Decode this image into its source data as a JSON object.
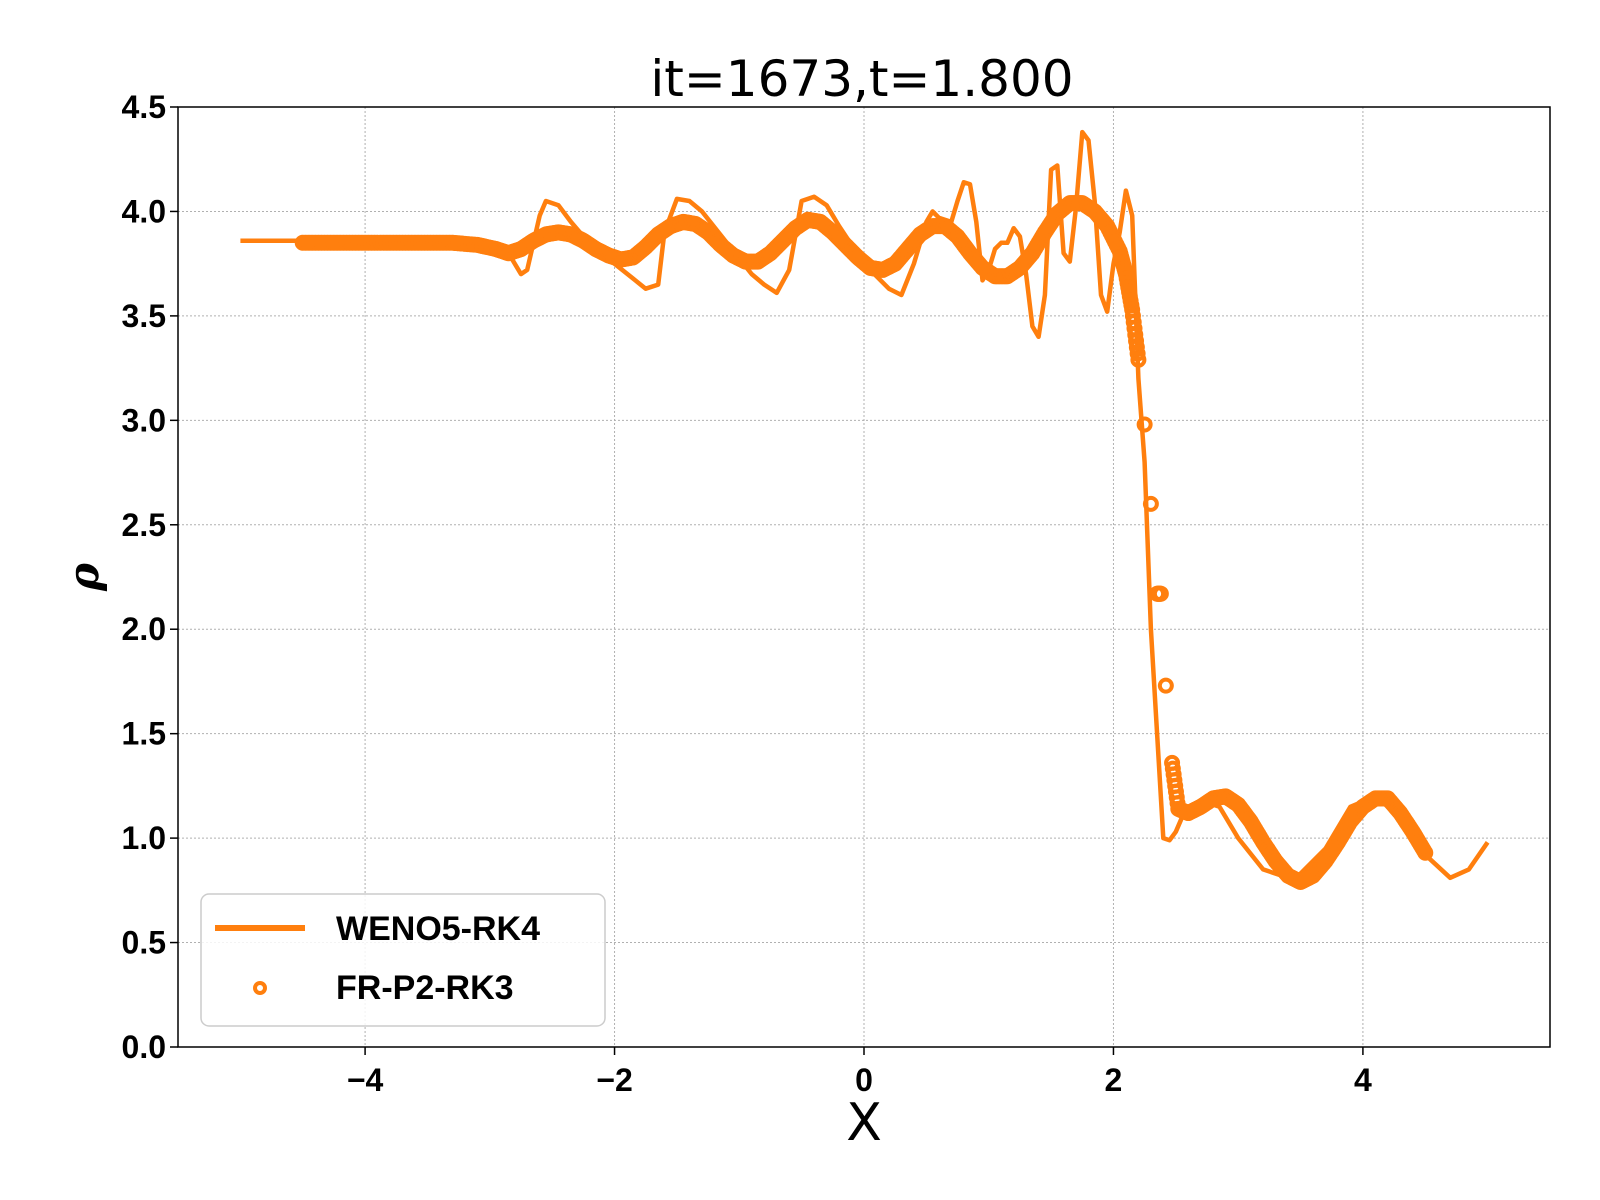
{
  "chart_data": {
    "type": "line",
    "title": "it=1673,t=1.800",
    "xlabel": "X",
    "ylabel": "ρ",
    "xlim": [
      -5.5,
      5.5
    ],
    "ylim": [
      0.0,
      4.5
    ],
    "xticks": [
      -4,
      -2,
      0,
      2,
      4
    ],
    "xtick_labels": [
      "−4",
      "−2",
      "0",
      "2",
      "4"
    ],
    "yticks": [
      0.0,
      0.5,
      1.0,
      1.5,
      2.0,
      2.5,
      3.0,
      3.5,
      4.0,
      4.5
    ],
    "ytick_labels": [
      "0.0",
      "0.5",
      "1.0",
      "1.5",
      "2.0",
      "2.5",
      "3.0",
      "3.5",
      "4.0",
      "4.5"
    ],
    "grid": true,
    "legend_position": "lower-left",
    "color": "#ff7f0e",
    "series": [
      {
        "name": "WENO5-RK4",
        "style": "line",
        "x": [
          -5.0,
          -4.0,
          -3.5,
          -3.0,
          -2.85,
          -2.75,
          -2.7,
          -2.6,
          -2.55,
          -2.45,
          -2.35,
          -2.25,
          -2.0,
          -1.75,
          -1.65,
          -1.6,
          -1.5,
          -1.4,
          -1.3,
          -1.1,
          -0.9,
          -0.8,
          -0.7,
          -0.6,
          -0.5,
          -0.4,
          -0.3,
          -0.2,
          0.0,
          0.2,
          0.3,
          0.4,
          0.5,
          0.55,
          0.6,
          0.7,
          0.75,
          0.8,
          0.85,
          0.9,
          0.95,
          1.0,
          1.05,
          1.1,
          1.15,
          1.2,
          1.25,
          1.3,
          1.35,
          1.4,
          1.45,
          1.5,
          1.55,
          1.6,
          1.65,
          1.7,
          1.75,
          1.8,
          1.85,
          1.9,
          1.95,
          2.0,
          2.05,
          2.1,
          2.15,
          2.2,
          2.25,
          2.3,
          2.35,
          2.4,
          2.45,
          2.5,
          2.55,
          2.6,
          2.7,
          2.85,
          3.0,
          3.2,
          3.45,
          3.7,
          3.9,
          4.1,
          4.3,
          4.5,
          4.7,
          4.85,
          5.0
        ],
        "y": [
          3.86,
          3.86,
          3.86,
          3.85,
          3.8,
          3.7,
          3.72,
          3.98,
          4.05,
          4.03,
          3.95,
          3.88,
          3.75,
          3.63,
          3.65,
          3.9,
          4.06,
          4.05,
          4.0,
          3.85,
          3.7,
          3.65,
          3.61,
          3.72,
          4.05,
          4.07,
          4.03,
          3.93,
          3.75,
          3.63,
          3.6,
          3.75,
          3.95,
          4.0,
          3.97,
          3.95,
          4.05,
          4.14,
          4.13,
          3.95,
          3.67,
          3.72,
          3.82,
          3.85,
          3.85,
          3.92,
          3.88,
          3.7,
          3.45,
          3.4,
          3.6,
          4.2,
          4.22,
          3.8,
          3.76,
          4.02,
          4.38,
          4.34,
          4.05,
          3.6,
          3.52,
          3.75,
          3.9,
          4.1,
          3.98,
          3.2,
          2.8,
          2.0,
          1.5,
          1.0,
          0.99,
          1.03,
          1.1,
          1.15,
          1.18,
          1.15,
          1.0,
          0.85,
          0.8,
          0.95,
          1.15,
          1.2,
          1.1,
          0.92,
          0.81,
          0.85,
          0.98
        ]
      },
      {
        "name": "FR-P2-RK3",
        "style": "markers",
        "marker": "open-circle",
        "x": [
          -4.5,
          -4.3,
          -4.1,
          -3.9,
          -3.7,
          -3.5,
          -3.3,
          -3.1,
          -2.95,
          -2.85,
          -2.75,
          -2.65,
          -2.55,
          -2.45,
          -2.35,
          -2.25,
          -2.15,
          -2.05,
          -1.95,
          -1.85,
          -1.75,
          -1.65,
          -1.55,
          -1.45,
          -1.35,
          -1.25,
          -1.15,
          -1.05,
          -0.95,
          -0.85,
          -0.75,
          -0.65,
          -0.55,
          -0.45,
          -0.35,
          -0.25,
          -0.15,
          -0.05,
          0.05,
          0.15,
          0.25,
          0.35,
          0.45,
          0.55,
          0.65,
          0.75,
          0.85,
          0.95,
          1.05,
          1.15,
          1.25,
          1.35,
          1.45,
          1.55,
          1.65,
          1.75,
          1.85,
          1.95,
          2.05,
          2.1,
          2.15,
          2.2,
          2.25,
          2.3,
          2.35,
          2.38,
          2.42,
          2.47,
          2.52,
          2.6,
          2.7,
          2.8,
          2.9,
          3.0,
          3.1,
          3.2,
          3.3,
          3.4,
          3.5,
          3.6,
          3.7,
          3.8,
          3.9,
          4.0,
          4.1,
          4.2,
          4.3,
          4.4,
          4.5
        ],
        "y": [
          3.85,
          3.85,
          3.85,
          3.85,
          3.85,
          3.85,
          3.85,
          3.84,
          3.82,
          3.8,
          3.82,
          3.86,
          3.89,
          3.9,
          3.89,
          3.86,
          3.82,
          3.79,
          3.77,
          3.78,
          3.83,
          3.89,
          3.93,
          3.95,
          3.94,
          3.9,
          3.84,
          3.79,
          3.76,
          3.76,
          3.8,
          3.86,
          3.92,
          3.96,
          3.95,
          3.9,
          3.84,
          3.78,
          3.73,
          3.72,
          3.75,
          3.82,
          3.89,
          3.93,
          3.93,
          3.88,
          3.8,
          3.73,
          3.69,
          3.69,
          3.73,
          3.8,
          3.9,
          3.99,
          4.04,
          4.04,
          4.0,
          3.93,
          3.81,
          3.7,
          3.53,
          3.29,
          2.98,
          2.6,
          2.17,
          2.17,
          1.73,
          1.36,
          1.14,
          1.12,
          1.15,
          1.19,
          1.2,
          1.16,
          1.08,
          0.98,
          0.89,
          0.82,
          0.79,
          0.82,
          0.89,
          0.98,
          1.08,
          1.15,
          1.19,
          1.19,
          1.12,
          1.03,
          0.93
        ]
      }
    ]
  }
}
